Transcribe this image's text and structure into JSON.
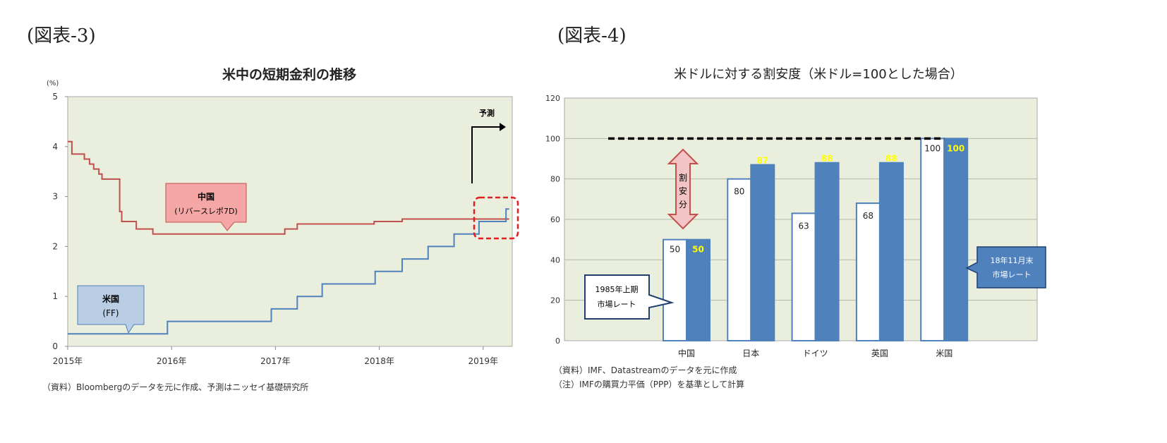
{
  "figures": {
    "left_label": "(図表-3)",
    "right_label": "(図表-4)"
  },
  "chart_data": [
    {
      "type": "line",
      "title": "米中の短期金利の推移",
      "ylabel": "(%)",
      "ylim": [
        0,
        5
      ],
      "yticks": [
        "0",
        "1",
        "2",
        "3",
        "4",
        "5"
      ],
      "xlim": [
        2015.0,
        2019.28
      ],
      "xticks": [
        {
          "value": 2015,
          "label": "2015年"
        },
        {
          "value": 2016,
          "label": "2016年"
        },
        {
          "value": 2017,
          "label": "2017年"
        },
        {
          "value": 2018,
          "label": "2018年"
        },
        {
          "value": 2019,
          "label": "2019年"
        }
      ],
      "grid": false,
      "background": "#eaeedd",
      "series": [
        {
          "name": "中国 (リバースレポ7D)",
          "label_line1": "中国",
          "label_line2": "(リバースレポ7D)",
          "color": "#c0504d",
          "step": true,
          "points": [
            [
              2015.0,
              4.1
            ],
            [
              2015.04,
              3.85
            ],
            [
              2015.16,
              3.75
            ],
            [
              2015.21,
              3.65
            ],
            [
              2015.25,
              3.55
            ],
            [
              2015.3,
              3.45
            ],
            [
              2015.33,
              3.35
            ],
            [
              2015.5,
              2.7
            ],
            [
              2015.52,
              2.5
            ],
            [
              2015.66,
              2.35
            ],
            [
              2015.82,
              2.25
            ],
            [
              2017.09,
              2.35
            ],
            [
              2017.21,
              2.45
            ],
            [
              2017.95,
              2.5
            ],
            [
              2018.22,
              2.55
            ],
            [
              2019.25,
              2.55
            ]
          ]
        },
        {
          "name": "米国 (FF)",
          "label_line1": "米国",
          "label_line2": "(FF)",
          "color": "#4f81bd",
          "step": true,
          "points": [
            [
              2015.0,
              0.25
            ],
            [
              2015.96,
              0.5
            ],
            [
              2016.96,
              0.75
            ],
            [
              2017.21,
              1.0
            ],
            [
              2017.45,
              1.25
            ],
            [
              2017.96,
              1.5
            ],
            [
              2018.22,
              1.75
            ],
            [
              2018.47,
              2.0
            ],
            [
              2018.72,
              2.25
            ],
            [
              2018.96,
              2.5
            ],
            [
              2019.22,
              2.75
            ],
            [
              2019.25,
              2.75
            ]
          ]
        }
      ],
      "annotations": {
        "forecast": "予測"
      },
      "source": "（資料）Bloombergのデータを元に作成、予測はニッセイ基礎研究所"
    },
    {
      "type": "bar",
      "title": "米ドルに対する割安度（米ドル=100とした場合）",
      "ylim": [
        0,
        120
      ],
      "yticks": [
        "0",
        "20",
        "40",
        "60",
        "80",
        "100",
        "120"
      ],
      "grid": true,
      "background": "#eaeedd",
      "categories": [
        "中国",
        "日本",
        "ドイツ",
        "英国",
        "米国"
      ],
      "series": [
        {
          "name": "1985年上期市場レート",
          "color": "#ffffff",
          "values": [
            50,
            80,
            63,
            68,
            100
          ]
        },
        {
          "name": "18年11月末市場レート",
          "color": "#4f81bd",
          "label_color": "#ffff00",
          "values": [
            50,
            87,
            88,
            88,
            100
          ]
        }
      ],
      "reference_line": 100,
      "callouts": {
        "old_line1": "1985年上期",
        "old_line2": "市場レート",
        "new_line1": "18年11月末",
        "new_line2": "市場レート",
        "gap": [
          "割",
          "安",
          "分"
        ]
      },
      "source": "（資料）IMF、Datastreamのデータを元に作成",
      "note": "（注）IMFの購買力平価（PPP）を基準として計算"
    }
  ]
}
